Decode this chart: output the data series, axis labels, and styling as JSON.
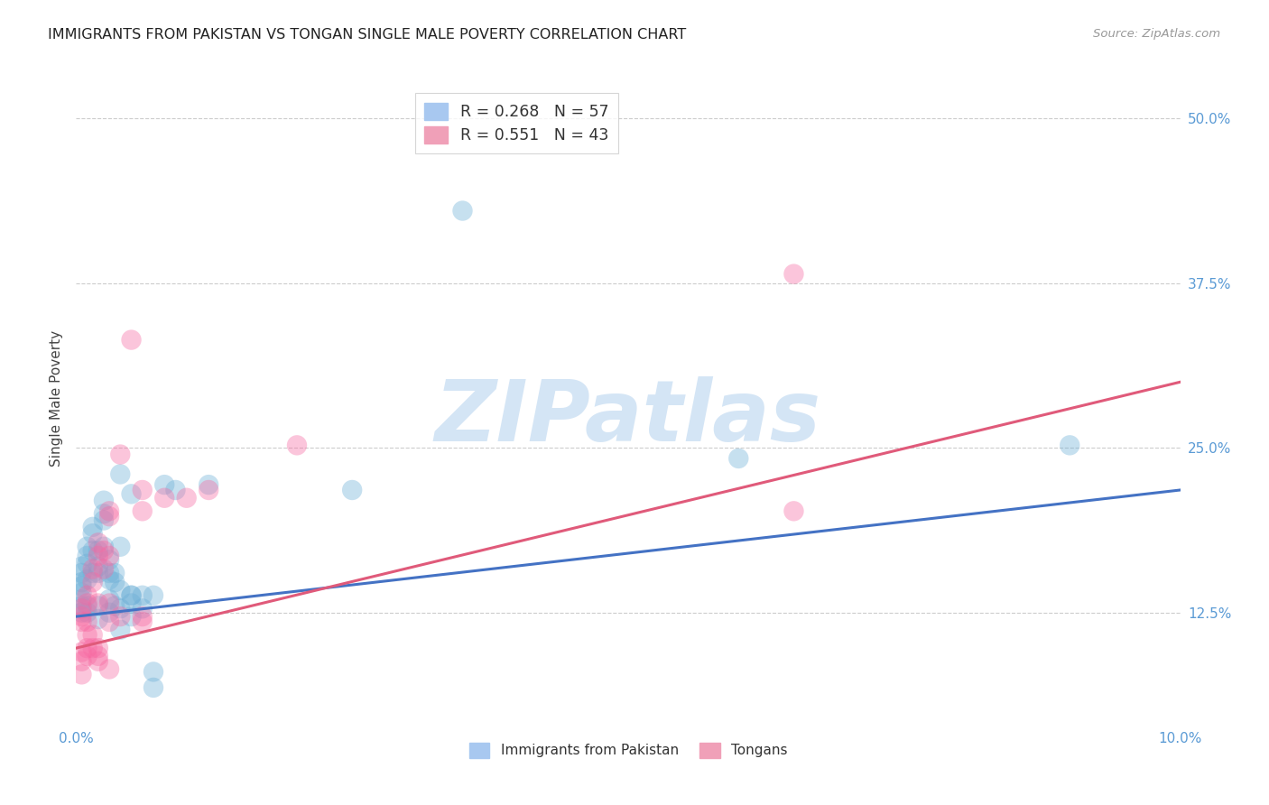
{
  "title": "IMMIGRANTS FROM PAKISTAN VS TONGAN SINGLE MALE POVERTY CORRELATION CHART",
  "source": "Source: ZipAtlas.com",
  "ylabel": "Single Male Poverty",
  "watermark": "ZIPatlas",
  "xlim": [
    0.0,
    0.1
  ],
  "ylim": [
    0.04,
    0.535
  ],
  "yticks": [
    0.125,
    0.25,
    0.375,
    0.5
  ],
  "ytick_labels": [
    "12.5%",
    "25.0%",
    "37.5%",
    "50.0%"
  ],
  "blue_color": "#6baed6",
  "pink_color": "#f768a1",
  "blue_line_color": "#4472c4",
  "pink_line_color": "#e05a7a",
  "axis_color": "#5b9bd5",
  "pakistan_points": [
    [
      0.0005,
      0.13
    ],
    [
      0.0005,
      0.125
    ],
    [
      0.0005,
      0.148
    ],
    [
      0.0005,
      0.155
    ],
    [
      0.0005,
      0.14
    ],
    [
      0.0005,
      0.16
    ],
    [
      0.0005,
      0.135
    ],
    [
      0.0005,
      0.145
    ],
    [
      0.001,
      0.13
    ],
    [
      0.001,
      0.125
    ],
    [
      0.001,
      0.15
    ],
    [
      0.001,
      0.162
    ],
    [
      0.001,
      0.175
    ],
    [
      0.001,
      0.168
    ],
    [
      0.0015,
      0.155
    ],
    [
      0.0015,
      0.172
    ],
    [
      0.0015,
      0.185
    ],
    [
      0.0015,
      0.19
    ],
    [
      0.002,
      0.13
    ],
    [
      0.002,
      0.16
    ],
    [
      0.002,
      0.172
    ],
    [
      0.002,
      0.155
    ],
    [
      0.002,
      0.12
    ],
    [
      0.0025,
      0.195
    ],
    [
      0.0025,
      0.2
    ],
    [
      0.0025,
      0.21
    ],
    [
      0.0025,
      0.175
    ],
    [
      0.003,
      0.135
    ],
    [
      0.003,
      0.15
    ],
    [
      0.003,
      0.165
    ],
    [
      0.003,
      0.155
    ],
    [
      0.003,
      0.125
    ],
    [
      0.0035,
      0.13
    ],
    [
      0.0035,
      0.148
    ],
    [
      0.0035,
      0.155
    ],
    [
      0.004,
      0.175
    ],
    [
      0.004,
      0.23
    ],
    [
      0.004,
      0.128
    ],
    [
      0.004,
      0.142
    ],
    [
      0.004,
      0.112
    ],
    [
      0.005,
      0.138
    ],
    [
      0.005,
      0.215
    ],
    [
      0.005,
      0.132
    ],
    [
      0.005,
      0.122
    ],
    [
      0.005,
      0.138
    ],
    [
      0.006,
      0.128
    ],
    [
      0.006,
      0.138
    ],
    [
      0.007,
      0.138
    ],
    [
      0.007,
      0.08
    ],
    [
      0.007,
      0.068
    ],
    [
      0.008,
      0.222
    ],
    [
      0.009,
      0.218
    ],
    [
      0.012,
      0.222
    ],
    [
      0.025,
      0.218
    ],
    [
      0.035,
      0.43
    ],
    [
      0.06,
      0.242
    ],
    [
      0.09,
      0.252
    ]
  ],
  "tongan_points": [
    [
      0.0005,
      0.118
    ],
    [
      0.0005,
      0.122
    ],
    [
      0.0005,
      0.128
    ],
    [
      0.0005,
      0.095
    ],
    [
      0.0005,
      0.078
    ],
    [
      0.0005,
      0.088
    ],
    [
      0.001,
      0.118
    ],
    [
      0.001,
      0.132
    ],
    [
      0.001,
      0.138
    ],
    [
      0.001,
      0.098
    ],
    [
      0.001,
      0.108
    ],
    [
      0.001,
      0.092
    ],
    [
      0.0015,
      0.148
    ],
    [
      0.0015,
      0.158
    ],
    [
      0.0015,
      0.108
    ],
    [
      0.0015,
      0.098
    ],
    [
      0.002,
      0.168
    ],
    [
      0.002,
      0.178
    ],
    [
      0.002,
      0.132
    ],
    [
      0.002,
      0.098
    ],
    [
      0.002,
      0.092
    ],
    [
      0.002,
      0.088
    ],
    [
      0.0025,
      0.158
    ],
    [
      0.0025,
      0.172
    ],
    [
      0.003,
      0.168
    ],
    [
      0.003,
      0.132
    ],
    [
      0.003,
      0.202
    ],
    [
      0.003,
      0.198
    ],
    [
      0.003,
      0.082
    ],
    [
      0.003,
      0.118
    ],
    [
      0.004,
      0.245
    ],
    [
      0.004,
      0.122
    ],
    [
      0.005,
      0.332
    ],
    [
      0.006,
      0.218
    ],
    [
      0.006,
      0.202
    ],
    [
      0.006,
      0.118
    ],
    [
      0.006,
      0.122
    ],
    [
      0.008,
      0.212
    ],
    [
      0.01,
      0.212
    ],
    [
      0.012,
      0.218
    ],
    [
      0.02,
      0.252
    ],
    [
      0.065,
      0.382
    ],
    [
      0.065,
      0.202
    ]
  ],
  "pakistan_line": {
    "x0": 0.0,
    "y0": 0.122,
    "x1": 0.1,
    "y1": 0.218
  },
  "tongan_line": {
    "x0": 0.0,
    "y0": 0.098,
    "x1": 0.1,
    "y1": 0.3
  }
}
